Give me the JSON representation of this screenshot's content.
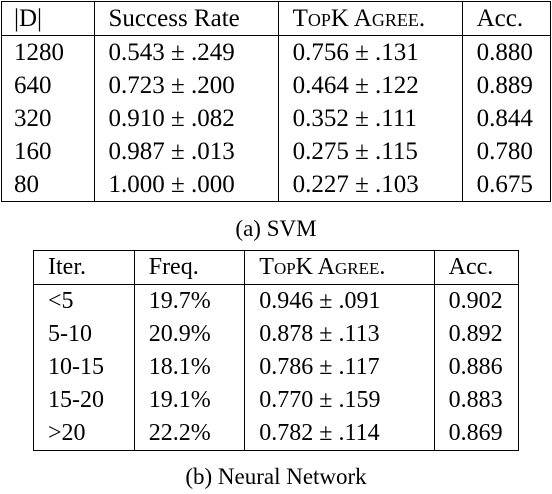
{
  "svm_table": {
    "caption": "(a) SVM",
    "headers": [
      "|D|",
      "Success Rate",
      "TopK Agree.",
      "Acc."
    ],
    "rows": [
      [
        "1280",
        "0.543 ± .249",
        "0.756 ± .131",
        "0.880"
      ],
      [
        "640",
        "0.723 ± .200",
        "0.464 ± .122",
        "0.889"
      ],
      [
        "320",
        "0.910 ± .082",
        "0.352 ± .111",
        "0.844"
      ],
      [
        "160",
        "0.987 ± .013",
        "0.275 ± .115",
        "0.780"
      ],
      [
        "80",
        "1.000 ± .000",
        "0.227 ± .103",
        "0.675"
      ]
    ]
  },
  "nn_table": {
    "caption": "(b) Neural Network",
    "headers": [
      "Iter.",
      "Freq.",
      "TopK Agree.",
      "Acc."
    ],
    "rows": [
      [
        "<5",
        "19.7%",
        "0.946 ± .091",
        "0.902"
      ],
      [
        "5-10",
        "20.9%",
        "0.878 ± .113",
        "0.892"
      ],
      [
        "10-15",
        "18.1%",
        "0.786 ± .117",
        "0.886"
      ],
      [
        "15-20",
        "19.1%",
        "0.770 ± .159",
        "0.883"
      ],
      [
        ">20",
        "22.2%",
        "0.782 ± .114",
        "0.869"
      ]
    ]
  }
}
